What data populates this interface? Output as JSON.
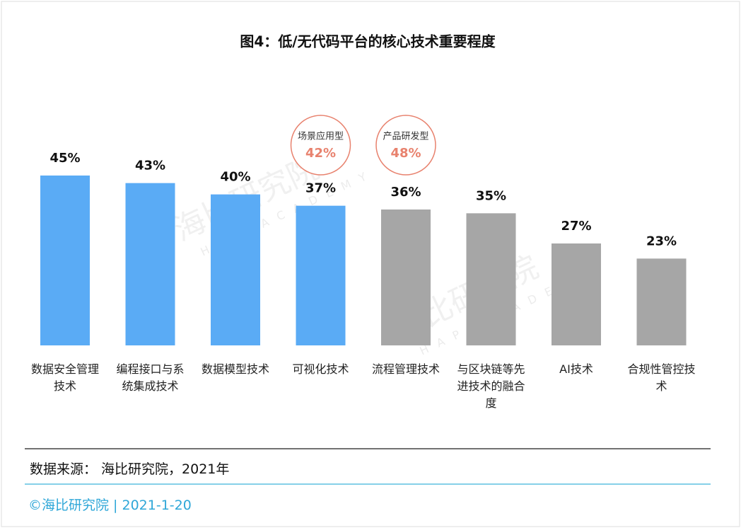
{
  "chart_data": {
    "type": "bar",
    "title": "图4：低/无代码平台的核心技术重要程度",
    "categories": [
      "数据安全管理技术",
      "编程接口与系统集成技术",
      "数据模型技术",
      "可视化技术",
      "流程管理技术",
      "与区块链等先进技术的融合度",
      "AI技术",
      "合规性管控技术"
    ],
    "values": [
      45,
      43,
      40,
      37,
      36,
      35,
      27,
      23
    ],
    "value_labels": [
      "45%",
      "43%",
      "40%",
      "37%",
      "36%",
      "35%",
      "27%",
      "23%"
    ],
    "colors": [
      "#5aabf5",
      "#5aabf5",
      "#5aabf5",
      "#5aabf5",
      "#a6a6a6",
      "#a6a6a6",
      "#a6a6a6",
      "#a6a6a6"
    ],
    "annotations": [
      {
        "text": "场景应用型",
        "label": "42%"
      },
      {
        "text": "产品研发型",
        "label": "48%"
      }
    ]
  },
  "watermark": {
    "name": "海比研究院",
    "sub": "HAP ACADEMY"
  },
  "source": "数据来源： 海比研究院，2021年",
  "footer": "©海比研究院 | 2021-1-20"
}
